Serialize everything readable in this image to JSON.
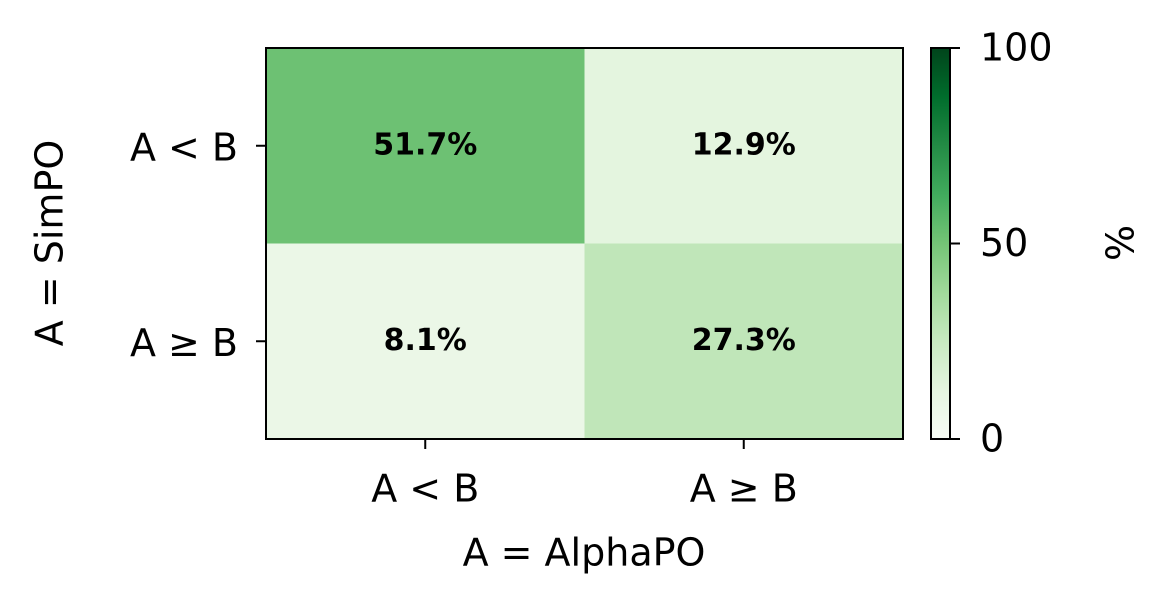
{
  "chart_data": {
    "type": "heatmap",
    "x_label": "A = AlphaPO",
    "y_label": "A = SimPO",
    "x_categories": [
      "A < B",
      "A ≥ B"
    ],
    "y_categories": [
      "A < B",
      "A ≥ B"
    ],
    "values": [
      [
        51.7,
        12.9
      ],
      [
        8.1,
        27.3
      ]
    ],
    "value_labels": [
      [
        "51.7%",
        "12.9%"
      ],
      [
        "8.1%",
        "27.3%"
      ]
    ],
    "colormap": "Greens",
    "clim": [
      0,
      100
    ],
    "cticks": [
      0,
      50,
      100
    ],
    "colorbar_label": "%"
  }
}
